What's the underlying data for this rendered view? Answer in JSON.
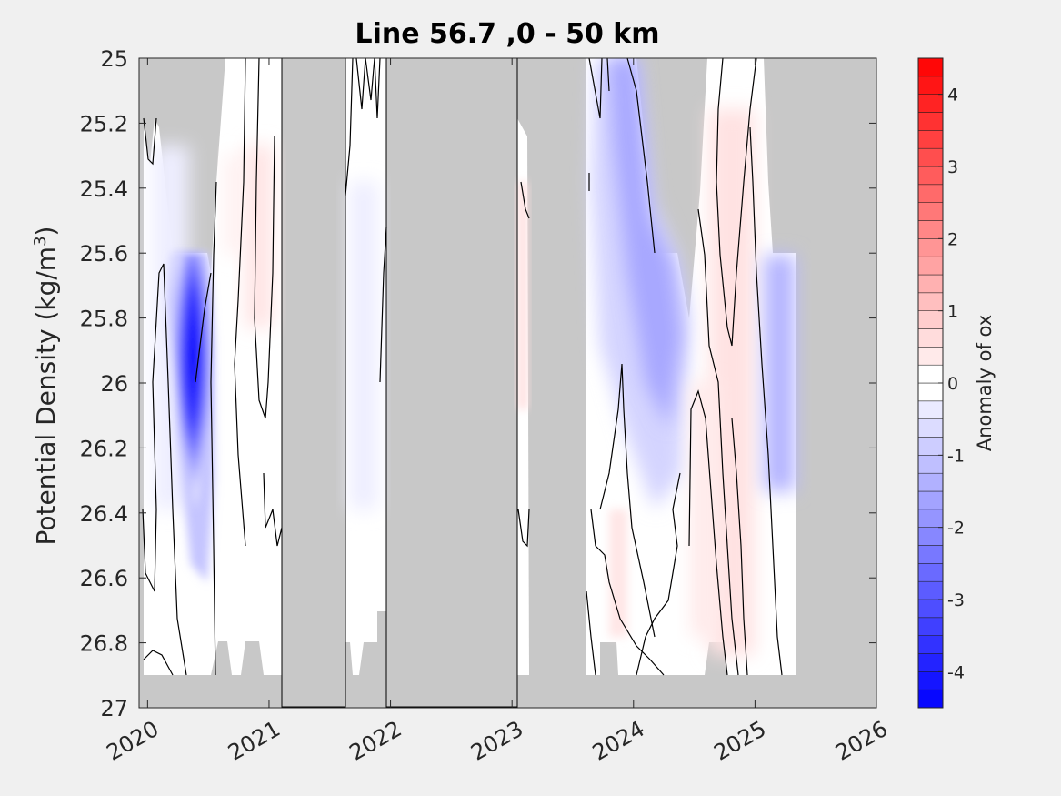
{
  "chart_data": {
    "type": "heatmap",
    "title": "Line 56.7 ,0 - 50 km",
    "ylabel_main": "Potential Density (kg/m",
    "ylabel_sup": "3",
    "ylabel_tail": ")",
    "xlim": [
      2019.93,
      2026.0
    ],
    "ylim": [
      25,
      27
    ],
    "y_reversed": true,
    "x_ticks": [
      2020,
      2021,
      2022,
      2023,
      2024,
      2025,
      2026
    ],
    "x_tick_labels": [
      "2020",
      "2021",
      "2022",
      "2023",
      "2024",
      "2025",
      "2026"
    ],
    "y_ticks": [
      25,
      25.2,
      25.4,
      25.6,
      25.8,
      26,
      26.2,
      26.4,
      26.6,
      26.8,
      27
    ],
    "y_tick_labels": [
      "25",
      "25.2",
      "25.4",
      "25.6",
      "25.8",
      "26",
      "26.2",
      "26.4",
      "26.6",
      "26.8",
      "27"
    ],
    "colorbar": {
      "label": "Anomaly of ox",
      "range": [
        -4.5,
        4.5
      ],
      "ticks": [
        -4,
        -3,
        -2,
        -1,
        0,
        1,
        2,
        3,
        4
      ],
      "tick_labels": [
        "-4",
        "-3",
        "-2",
        "-1",
        "0",
        "1",
        "2",
        "3",
        "4"
      ],
      "levels": 36,
      "colormap": "blue-white-red",
      "negative_color": "#0000ff",
      "positive_color": "#ff0000",
      "zero_color": "#ffffff"
    },
    "no_data_color": "#c8c8c8",
    "no_data_periods": [
      [
        2021.1,
        2021.62
      ],
      [
        2021.97,
        2023.04
      ],
      [
        2023.04,
        2023.59
      ],
      [
        2025.34,
        2026.0
      ]
    ],
    "anomaly_features": [
      {
        "x": [
          2020.2,
          2020.55
        ],
        "y": [
          25.6,
          26.7
        ],
        "peak": -4.2
      },
      {
        "x": [
          2020.6,
          2020.95
        ],
        "y": [
          25.2,
          26.1
        ],
        "peak": 0.5
      },
      {
        "x": [
          2023.85,
          2024.45
        ],
        "y": [
          25.0,
          26.6
        ],
        "peak": -1.6
      },
      {
        "x": [
          2024.55,
          2025.0
        ],
        "y": [
          25.0,
          26.9
        ],
        "peak": 0.7
      },
      {
        "x": [
          2025.05,
          2025.35
        ],
        "y": [
          25.6,
          26.5
        ],
        "peak": -1.3
      }
    ]
  }
}
